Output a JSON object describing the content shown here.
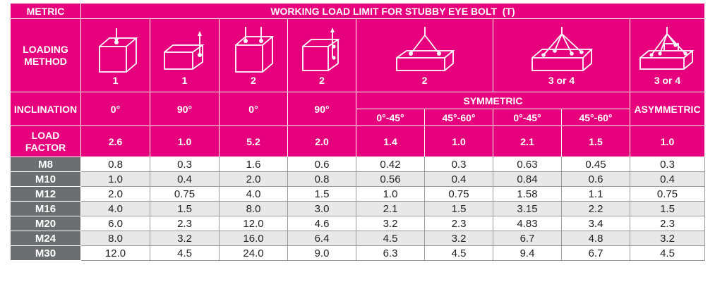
{
  "header": {
    "metric": "METRIC",
    "title": "WORKING LOAD LIMIT FOR STUBBY EYE BOLT  (T)",
    "loading_method": "LOADING\nMETHOD",
    "inclination": "INCLINATION",
    "load_factor": "LOAD\nFACTOR",
    "symmetric": "SYMMETRIC",
    "asymmetric": "ASYMMETRIC"
  },
  "loading_methods": [
    {
      "icon": "single-vertical-lift-icon",
      "count": "1"
    },
    {
      "icon": "single-side-lift-icon",
      "count": "1"
    },
    {
      "icon": "double-vertical-lift-icon",
      "count": "2"
    },
    {
      "icon": "double-side-lift-icon",
      "count": "2"
    },
    {
      "icon": "two-leg-sling-icon",
      "count": "2"
    },
    {
      "icon": "four-leg-sling-icon",
      "count": "3 or 4"
    },
    {
      "icon": "asymmetric-sling-icon",
      "count": "3 or 4"
    }
  ],
  "inclinations_single": [
    "0°",
    "90°",
    "0°",
    "90°"
  ],
  "inclinations_symmetric": [
    "0°-45°",
    "45°-60°",
    "0°-45°",
    "45°-60°"
  ],
  "load_factors": [
    "2.6",
    "1.0",
    "5.2",
    "2.0",
    "1.4",
    "1.0",
    "2.1",
    "1.5",
    "1.0"
  ],
  "rows": [
    {
      "metric": "M8",
      "values": [
        "0.8",
        "0.3",
        "1.6",
        "0.6",
        "0.42",
        "0.3",
        "0.63",
        "0.45",
        "0.3"
      ]
    },
    {
      "metric": "M10",
      "values": [
        "1.0",
        "0.4",
        "2.0",
        "0.8",
        "0.56",
        "0.4",
        "0.84",
        "0.6",
        "0.4"
      ]
    },
    {
      "metric": "M12",
      "values": [
        "2.0",
        "0.75",
        "4.0",
        "1.5",
        "1.0",
        "0.75",
        "1.58",
        "1.1",
        "0.75"
      ]
    },
    {
      "metric": "M16",
      "values": [
        "4.0",
        "1.5",
        "8.0",
        "3.0",
        "2.1",
        "1.5",
        "3.15",
        "2.2",
        "1.5"
      ]
    },
    {
      "metric": "M20",
      "values": [
        "6.0",
        "2.3",
        "12.0",
        "4.6",
        "3.2",
        "2.3",
        "4.83",
        "3.4",
        "2.3"
      ]
    },
    {
      "metric": "M24",
      "values": [
        "8.0",
        "3.2",
        "16.0",
        "6.4",
        "4.5",
        "3.2",
        "6.7",
        "4.8",
        "3.2"
      ]
    },
    {
      "metric": "M30",
      "values": [
        "12.0",
        "4.5",
        "24.0",
        "9.0",
        "6.3",
        "4.5",
        "9.4",
        "6.7",
        "4.5"
      ]
    }
  ],
  "colors": {
    "accent": "#e6007e",
    "row_header": "#6d6e71",
    "stripe": "#e8e8e8"
  }
}
